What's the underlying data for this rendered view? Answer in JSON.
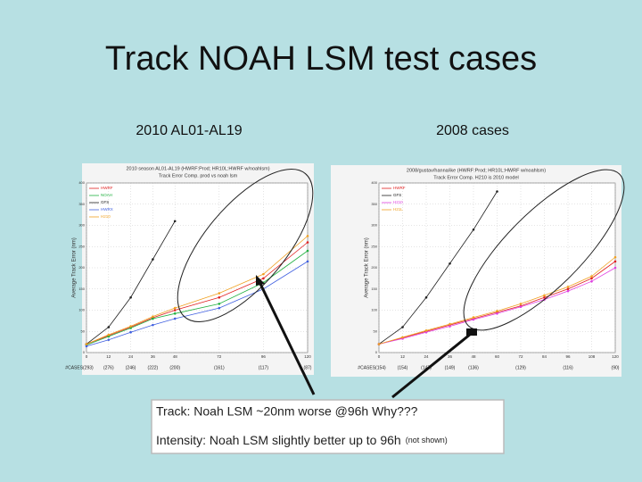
{
  "title": "Track NOAH LSM test cases",
  "left_caption": "2010 AL01-AL19",
  "right_caption": "2008 cases",
  "note": {
    "line1": "Track: Noah LSM ~20nm worse @96h Why???",
    "line2": "Intensity: Noah LSM slightly better up to 96h",
    "line2_small": "(not shown)"
  },
  "chart_data": [
    {
      "type": "line",
      "title": "2010 season AL01-AL19 (HWRF:Prod; HR10L:HWRF w/noahlsm)",
      "subtitle": "Track Error Comp. prod vs noah lsm",
      "y_label": "Average Track Error (nm)",
      "x": [
        0,
        12,
        24,
        36,
        48,
        72,
        96,
        120
      ],
      "xlim": [
        0,
        120
      ],
      "ylim": [
        0,
        400
      ],
      "yticks": [
        0,
        50,
        100,
        150,
        200,
        250,
        300,
        350,
        400
      ],
      "grid": true,
      "case_labels": [
        "#CASES(293)",
        "(276)",
        "(246)",
        "(222)",
        "(200)",
        "(161)",
        "(117)",
        "(87)"
      ],
      "series": [
        {
          "name": "HWRF",
          "color": "#e02020",
          "values": [
            20,
            40,
            60,
            82,
            100,
            130,
            175,
            260
          ]
        },
        {
          "name": "NOAH",
          "color": "#20b040",
          "values": [
            18,
            38,
            58,
            80,
            92,
            115,
            165,
            240
          ]
        },
        {
          "name": "GFS",
          "color": "#202020",
          "values": [
            20,
            60,
            130,
            220,
            310,
            null,
            null,
            null
          ]
        },
        {
          "name": "HWRX",
          "color": "#4060e0",
          "values": [
            15,
            30,
            48,
            65,
            80,
            105,
            150,
            215
          ]
        },
        {
          "name": "H210",
          "color": "#f0a020",
          "values": [
            20,
            42,
            62,
            85,
            105,
            140,
            185,
            275
          ]
        }
      ]
    },
    {
      "type": "line",
      "title": "2008/gustav/hanna/ike (HWRF:Prod; HR10L:HWRF w/noahlsm)",
      "subtitle": "Track Error Comp. H210 is 2010 model",
      "y_label": "Average Track Error (nm)",
      "x": [
        0,
        12,
        24,
        36,
        48,
        60,
        72,
        84,
        96,
        108,
        120
      ],
      "xlim": [
        0,
        120
      ],
      "ylim": [
        0,
        400
      ],
      "yticks": [
        0,
        50,
        100,
        150,
        200,
        250,
        300,
        350,
        400
      ],
      "grid": true,
      "case_labels": [
        "#CASES(154)",
        "(154)",
        "(147)",
        "(149)",
        "(136)",
        null,
        "(129)",
        null,
        "(116)",
        null,
        "(90)"
      ],
      "series": [
        {
          "name": "HWRF",
          "color": "#e02020",
          "values": [
            20,
            35,
            50,
            65,
            80,
            95,
            110,
            130,
            150,
            175,
            215
          ]
        },
        {
          "name": "GFS",
          "color": "#202020",
          "values": [
            20,
            60,
            130,
            210,
            290,
            380,
            null,
            null,
            null,
            null,
            null
          ]
        },
        {
          "name": "H210",
          "color": "#e040e0",
          "values": [
            20,
            33,
            48,
            62,
            78,
            92,
            108,
            125,
            145,
            168,
            200
          ]
        },
        {
          "name": "H21L",
          "color": "#f0a020",
          "values": [
            20,
            36,
            52,
            67,
            83,
            98,
            115,
            135,
            155,
            180,
            225
          ]
        }
      ]
    }
  ]
}
